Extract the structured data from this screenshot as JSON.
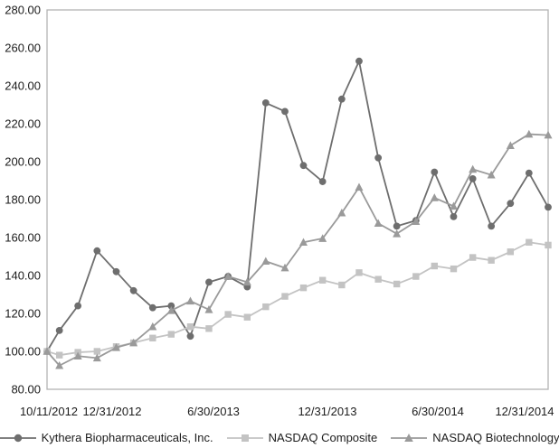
{
  "chart_data": {
    "type": "line",
    "title": "",
    "xlabel": "",
    "ylabel": "",
    "grid": false,
    "legend_position": "bottom",
    "axis_color": "#b3b3b3",
    "text_color": "#1c1c1c",
    "x": [
      "10/11/2012",
      "10/31/2012",
      "11/30/2012",
      "12/31/2012",
      "1/31/2013",
      "2/28/2013",
      "3/31/2013",
      "4/30/2013",
      "5/31/2013",
      "6/30/2013",
      "7/31/2013",
      "8/31/2013",
      "9/30/2013",
      "10/31/2013",
      "11/30/2013",
      "12/31/2013",
      "1/31/2014",
      "2/28/2014",
      "3/31/2014",
      "4/30/2014",
      "5/31/2014",
      "6/30/2014",
      "7/31/2014",
      "8/31/2014",
      "9/30/2014",
      "10/31/2014",
      "11/30/2014",
      "12/31/2014"
    ],
    "x_tick_labels": [
      "10/11/2012",
      "12/31/2012",
      "6/30/2013",
      "12/31/2013",
      "6/30/2014",
      "12/31/2014"
    ],
    "y_axis": {
      "min": 80,
      "max": 280,
      "step": 20
    },
    "y_tick_labels": [
      "280.00",
      "260.00",
      "240.00",
      "220.00",
      "200.00",
      "180.00",
      "160.00",
      "140.00",
      "120.00",
      "100.00",
      "80.00"
    ],
    "series": [
      {
        "name": "Kythera Biopharmaceuticals, Inc.",
        "marker": "circle",
        "color": "#6e6e6e",
        "values": [
          100,
          111,
          124,
          153,
          142,
          132,
          123,
          124,
          108,
          136.5,
          139.5,
          134,
          231,
          226.5,
          198,
          189.5,
          233,
          253,
          202,
          166,
          169,
          194.5,
          171,
          191,
          166,
          178,
          194,
          176
        ]
      },
      {
        "name": "NASDAQ Composite",
        "marker": "square",
        "color": "#c3c3c3",
        "values": [
          100,
          98,
          99.5,
          100,
          102.5,
          104.5,
          107,
          109,
          113,
          112,
          119.5,
          118,
          123.5,
          129,
          133.5,
          137.5,
          135,
          141.5,
          138,
          135.5,
          139.5,
          145,
          143.5,
          149.5,
          148,
          152.5,
          157.5,
          156
        ]
      },
      {
        "name": "NASDAQ Biotechnology",
        "marker": "triangle",
        "color": "#9a9a9a",
        "values": [
          100,
          92.5,
          97.5,
          96.5,
          102,
          104.5,
          113,
          121.5,
          126.5,
          122,
          139.5,
          136.5,
          147.5,
          144,
          157.5,
          159.5,
          173,
          186.5,
          167.5,
          162,
          168.5,
          181,
          176.5,
          196,
          193,
          208.5,
          214.5,
          214
        ]
      }
    ]
  }
}
